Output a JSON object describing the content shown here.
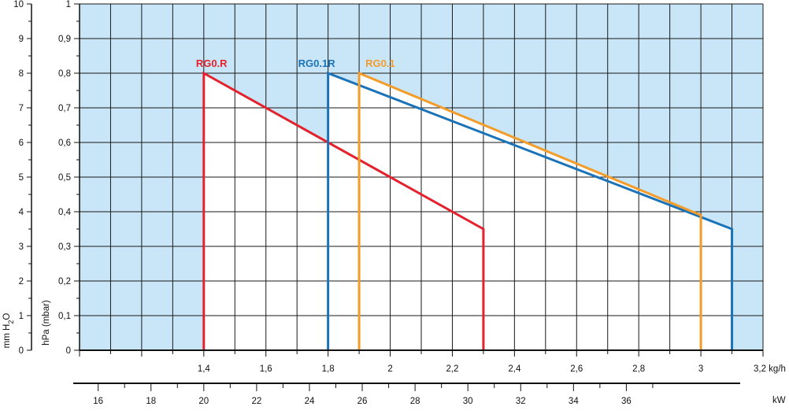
{
  "chart_data": {
    "type": "line",
    "x_unit": "kg/h",
    "xlim": [
      1.0,
      3.2
    ],
    "x_ticks": [
      "1,4",
      "1,6",
      "1,8",
      "2",
      "2,2",
      "2,4",
      "2,6",
      "2,8",
      "3",
      "3,2 kg/h"
    ],
    "y_hpa_label": "hPa (mbar)",
    "y_hpa_lim": [
      0,
      1
    ],
    "y_hpa_ticks": [
      "0",
      "0,1",
      "0,2",
      "0,3",
      "0,4",
      "0,5",
      "0,6",
      "0,7",
      "0,8",
      "0,9",
      "1"
    ],
    "y_mm_label": "mm H2O",
    "y_mm_lim": [
      0,
      10
    ],
    "y_mm_ticks": [
      "0",
      "1",
      "2",
      "3",
      "4",
      "5",
      "6",
      "7",
      "8",
      "9",
      "10"
    ],
    "kw_label": "kW",
    "kw_ticks": [
      "16",
      "18",
      "20",
      "22",
      "24",
      "26",
      "28",
      "30",
      "32",
      "34",
      "36"
    ],
    "kw_tick_positions_kgh": [
      1.06,
      1.23,
      1.4,
      1.57,
      1.74,
      1.91,
      2.08,
      2.25,
      2.42,
      2.59,
      2.76
    ],
    "grid": true,
    "series": [
      {
        "name": "RG0.R",
        "color": "#e3222d",
        "x": [
          1.4,
          1.4,
          2.3,
          2.3
        ],
        "y": [
          0,
          0.8,
          0.35,
          0
        ]
      },
      {
        "name": "RG0.1R",
        "color": "#1a73b8",
        "x": [
          1.8,
          1.8,
          3.1,
          3.1
        ],
        "y": [
          0,
          0.8,
          0.35,
          0
        ]
      },
      {
        "name": "RG0.1",
        "color": "#f39c29",
        "x": [
          1.9,
          1.9,
          3.0,
          3.0
        ],
        "y": [
          0,
          0.8,
          0.39,
          0
        ]
      }
    ],
    "colors": {
      "background_area": "#c8e6f7",
      "operating_area": "#ffffff",
      "grid": "#1a1a1a"
    }
  }
}
